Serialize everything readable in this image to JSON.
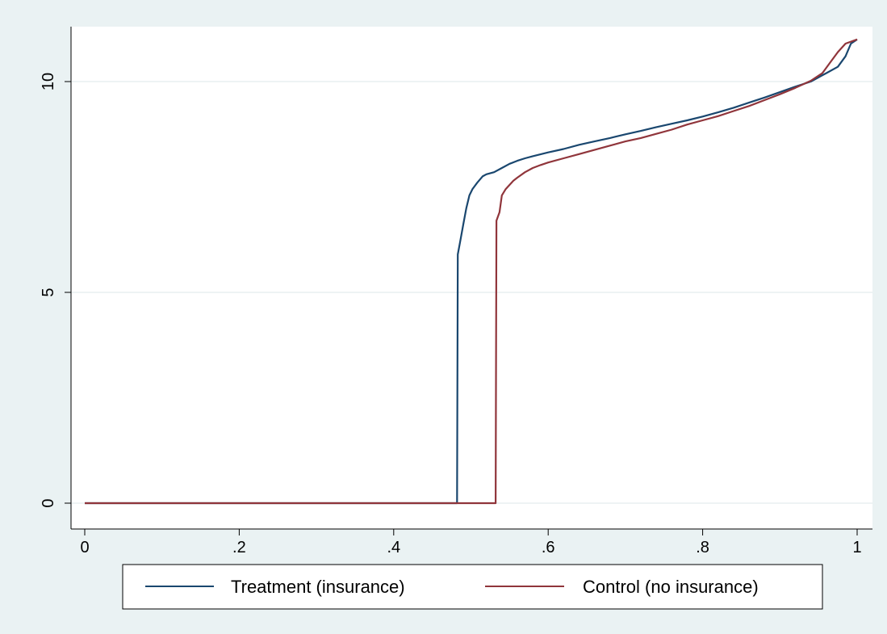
{
  "chart_data": {
    "type": "line",
    "xlim": [
      0,
      1
    ],
    "ylim": [
      0,
      11
    ],
    "x_ticks": [
      {
        "value": 0,
        "label": "0"
      },
      {
        "value": 0.2,
        "label": ".2"
      },
      {
        "value": 0.4,
        "label": ".4"
      },
      {
        "value": 0.6,
        "label": ".6"
      },
      {
        "value": 0.8,
        "label": ".8"
      },
      {
        "value": 1,
        "label": "1"
      }
    ],
    "y_ticks": [
      {
        "value": 0,
        "label": "0"
      },
      {
        "value": 5,
        "label": "5"
      },
      {
        "value": 10,
        "label": "10"
      }
    ],
    "grid": "horizontal",
    "legend_position": "bottom",
    "series": [
      {
        "name": "Treatment (insurance)",
        "color": "#1a476f",
        "points": [
          [
            0,
            0
          ],
          [
            0.482,
            0
          ],
          [
            0.483,
            5.9
          ],
          [
            0.486,
            6.2
          ],
          [
            0.49,
            6.6
          ],
          [
            0.494,
            7.0
          ],
          [
            0.498,
            7.3
          ],
          [
            0.502,
            7.45
          ],
          [
            0.508,
            7.6
          ],
          [
            0.515,
            7.75
          ],
          [
            0.52,
            7.8
          ],
          [
            0.53,
            7.85
          ],
          [
            0.54,
            7.95
          ],
          [
            0.55,
            8.05
          ],
          [
            0.56,
            8.12
          ],
          [
            0.57,
            8.18
          ],
          [
            0.58,
            8.23
          ],
          [
            0.6,
            8.32
          ],
          [
            0.62,
            8.4
          ],
          [
            0.64,
            8.5
          ],
          [
            0.66,
            8.58
          ],
          [
            0.68,
            8.66
          ],
          [
            0.7,
            8.75
          ],
          [
            0.72,
            8.83
          ],
          [
            0.74,
            8.92
          ],
          [
            0.76,
            9.0
          ],
          [
            0.78,
            9.08
          ],
          [
            0.8,
            9.17
          ],
          [
            0.82,
            9.27
          ],
          [
            0.84,
            9.38
          ],
          [
            0.86,
            9.5
          ],
          [
            0.88,
            9.62
          ],
          [
            0.9,
            9.75
          ],
          [
            0.92,
            9.88
          ],
          [
            0.94,
            10.0
          ],
          [
            0.96,
            10.2
          ],
          [
            0.975,
            10.35
          ],
          [
            0.985,
            10.6
          ],
          [
            0.992,
            10.9
          ],
          [
            1.0,
            11.0
          ]
        ]
      },
      {
        "name": "Control (no insurance)",
        "color": "#90353b",
        "points": [
          [
            0,
            0
          ],
          [
            0.532,
            0
          ],
          [
            0.533,
            6.7
          ],
          [
            0.537,
            6.9
          ],
          [
            0.54,
            7.3
          ],
          [
            0.545,
            7.45
          ],
          [
            0.55,
            7.55
          ],
          [
            0.555,
            7.65
          ],
          [
            0.56,
            7.72
          ],
          [
            0.57,
            7.85
          ],
          [
            0.58,
            7.95
          ],
          [
            0.59,
            8.02
          ],
          [
            0.6,
            8.08
          ],
          [
            0.62,
            8.18
          ],
          [
            0.64,
            8.28
          ],
          [
            0.66,
            8.38
          ],
          [
            0.68,
            8.48
          ],
          [
            0.7,
            8.58
          ],
          [
            0.72,
            8.66
          ],
          [
            0.74,
            8.76
          ],
          [
            0.76,
            8.86
          ],
          [
            0.78,
            8.98
          ],
          [
            0.8,
            9.08
          ],
          [
            0.82,
            9.18
          ],
          [
            0.84,
            9.3
          ],
          [
            0.86,
            9.42
          ],
          [
            0.88,
            9.56
          ],
          [
            0.9,
            9.7
          ],
          [
            0.92,
            9.85
          ],
          [
            0.94,
            10.02
          ],
          [
            0.955,
            10.2
          ],
          [
            0.965,
            10.45
          ],
          [
            0.975,
            10.7
          ],
          [
            0.985,
            10.9
          ],
          [
            1.0,
            11.0
          ]
        ]
      }
    ]
  }
}
